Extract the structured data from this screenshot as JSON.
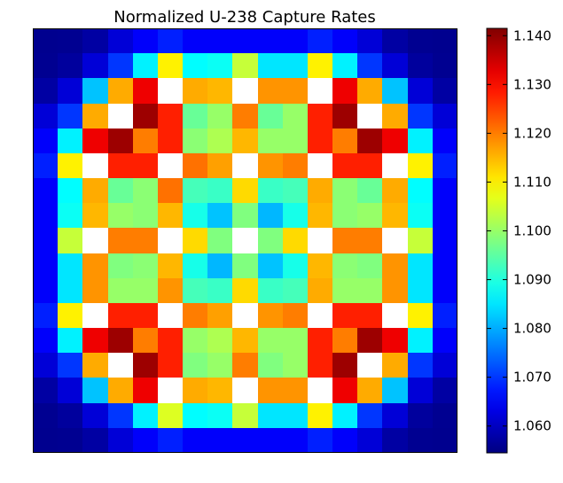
{
  "chart_data": {
    "type": "heatmap",
    "title": "Normalized U-238 Capture Rates",
    "xlabel": "",
    "ylabel": "",
    "colormap": "jet",
    "colorbar": {
      "min": 1.0545,
      "max": 1.1415,
      "ticks": [
        1.06,
        1.07,
        1.08,
        1.09,
        1.1,
        1.11,
        1.12,
        1.13,
        1.14
      ],
      "tick_labels": [
        "1.060",
        "1.070",
        "1.080",
        "1.090",
        "1.100",
        "1.110",
        "1.120",
        "1.130",
        "1.140"
      ]
    },
    "rows": 17,
    "cols": 17,
    "values": [
      [
        1.0558,
        1.056,
        1.0575,
        1.062,
        1.065,
        1.068,
        1.065,
        1.065,
        1.065,
        1.065,
        1.065,
        1.068,
        1.065,
        1.062,
        1.0575,
        1.056,
        1.0558
      ],
      [
        1.056,
        1.057,
        1.062,
        1.07,
        1.086,
        1.11,
        1.087,
        1.088,
        1.104,
        1.085,
        1.085,
        1.11,
        1.086,
        1.07,
        1.062,
        1.057,
        1.056
      ],
      [
        1.0575,
        1.062,
        1.082,
        1.116,
        1.132,
        1.15,
        1.116,
        1.115,
        1.15,
        1.118,
        1.118,
        1.15,
        1.132,
        1.116,
        1.082,
        1.062,
        1.0575
      ],
      [
        1.062,
        1.07,
        1.116,
        1.15,
        1.139,
        1.128,
        1.096,
        1.1,
        1.12,
        1.096,
        1.1,
        1.128,
        1.139,
        1.15,
        1.116,
        1.07,
        1.062
      ],
      [
        1.065,
        1.086,
        1.132,
        1.139,
        1.12,
        1.128,
        1.099,
        1.102,
        1.115,
        1.1,
        1.1,
        1.128,
        1.12,
        1.139,
        1.132,
        1.086,
        1.065
      ],
      [
        1.068,
        1.11,
        1.15,
        1.128,
        1.128,
        1.15,
        1.121,
        1.117,
        1.15,
        1.118,
        1.12,
        1.15,
        1.128,
        1.128,
        1.15,
        1.11,
        1.068
      ],
      [
        1.065,
        1.087,
        1.116,
        1.096,
        1.099,
        1.121,
        1.093,
        1.092,
        1.112,
        1.092,
        1.093,
        1.116,
        1.099,
        1.096,
        1.116,
        1.087,
        1.065
      ],
      [
        1.065,
        1.088,
        1.115,
        1.1,
        1.099,
        1.115,
        1.089,
        1.082,
        1.098,
        1.081,
        1.089,
        1.115,
        1.099,
        1.1,
        1.115,
        1.088,
        1.065
      ],
      [
        1.065,
        1.104,
        1.15,
        1.12,
        1.12,
        1.15,
        1.112,
        1.098,
        1.15,
        1.098,
        1.112,
        1.15,
        1.12,
        1.12,
        1.15,
        1.104,
        1.065
      ],
      [
        1.065,
        1.085,
        1.118,
        1.098,
        1.099,
        1.115,
        1.089,
        1.081,
        1.098,
        1.082,
        1.089,
        1.115,
        1.099,
        1.098,
        1.118,
        1.085,
        1.065
      ],
      [
        1.065,
        1.085,
        1.118,
        1.1,
        1.1,
        1.118,
        1.093,
        1.092,
        1.112,
        1.092,
        1.093,
        1.116,
        1.1,
        1.1,
        1.118,
        1.085,
        1.065
      ],
      [
        1.068,
        1.11,
        1.15,
        1.128,
        1.128,
        1.15,
        1.12,
        1.117,
        1.15,
        1.118,
        1.12,
        1.15,
        1.128,
        1.128,
        1.15,
        1.11,
        1.068
      ],
      [
        1.065,
        1.086,
        1.132,
        1.139,
        1.12,
        1.128,
        1.1,
        1.102,
        1.115,
        1.1,
        1.1,
        1.128,
        1.12,
        1.139,
        1.132,
        1.086,
        1.065
      ],
      [
        1.062,
        1.07,
        1.116,
        1.15,
        1.139,
        1.128,
        1.098,
        1.1,
        1.12,
        1.098,
        1.1,
        1.128,
        1.139,
        1.15,
        1.116,
        1.07,
        1.062
      ],
      [
        1.0575,
        1.062,
        1.082,
        1.116,
        1.132,
        1.15,
        1.116,
        1.115,
        1.15,
        1.118,
        1.118,
        1.15,
        1.132,
        1.116,
        1.082,
        1.062,
        1.0575
      ],
      [
        1.056,
        1.057,
        1.062,
        1.07,
        1.086,
        1.106,
        1.087,
        1.088,
        1.104,
        1.085,
        1.085,
        1.11,
        1.086,
        1.07,
        1.062,
        1.057,
        1.056
      ],
      [
        1.0558,
        1.056,
        1.0575,
        1.062,
        1.065,
        1.068,
        1.065,
        1.065,
        1.065,
        1.065,
        1.065,
        1.068,
        1.065,
        1.062,
        1.0575,
        1.056,
        1.0558
      ]
    ],
    "saturate_above_max_color": "#ffffff",
    "grid": false,
    "legend": "none"
  }
}
